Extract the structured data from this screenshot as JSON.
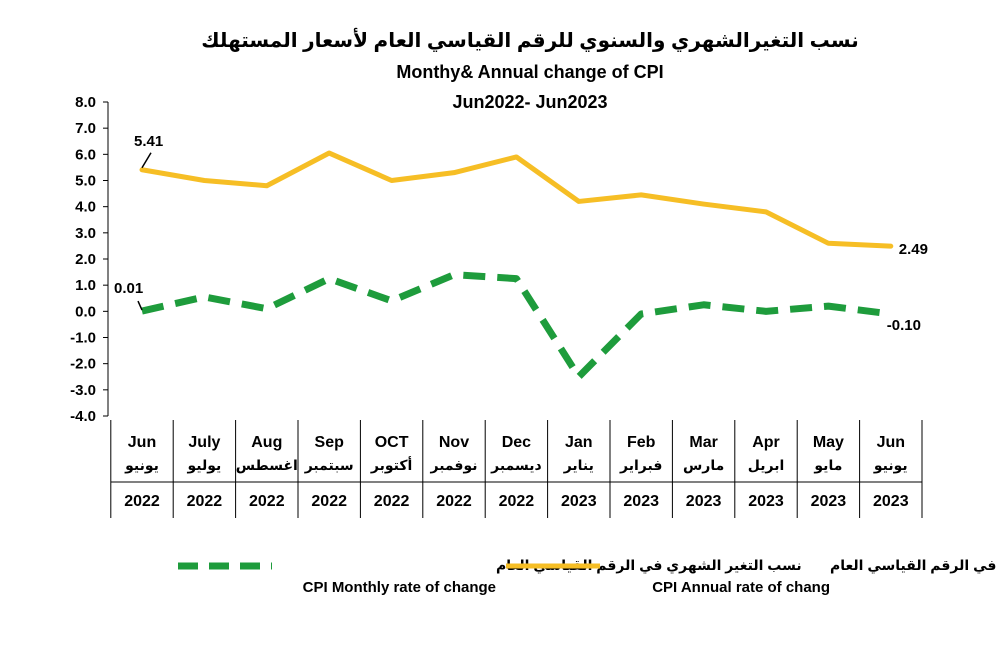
{
  "chart_data": {
    "type": "line",
    "title_ar": "نسب التغيرالشهري والسنوي للرقم القياسي العام لأسعار المستهلك",
    "title_en": "Monthy& Annual change of CPI",
    "subtitle": "Jun2022- Jun2023",
    "ylim": [
      -4.0,
      8.0
    ],
    "yticks": [
      "8.0",
      "7.0",
      "6.0",
      "5.0",
      "4.0",
      "3.0",
      "2.0",
      "1.0",
      "0.0",
      "-1.0",
      "-2.0",
      "-3.0",
      "-4.0"
    ],
    "categories": [
      {
        "en": "Jun",
        "ar": "يونيو",
        "year": "2022"
      },
      {
        "en": "July",
        "ar": "يوليو",
        "year": "2022"
      },
      {
        "en": "Aug",
        "ar": "اغسطس",
        "year": "2022"
      },
      {
        "en": "Sep",
        "ar": "سبتمبر",
        "year": "2022"
      },
      {
        "en": "OCT",
        "ar": "أكتوبر",
        "year": "2022"
      },
      {
        "en": "Nov",
        "ar": "نوفمبر",
        "year": "2022"
      },
      {
        "en": "Dec",
        "ar": "ديسمبر",
        "year": "2022"
      },
      {
        "en": "Jan",
        "ar": "يناير",
        "year": "2023"
      },
      {
        "en": "Feb",
        "ar": "فبراير",
        "year": "2023"
      },
      {
        "en": "Mar",
        "ar": "مارس",
        "year": "2023"
      },
      {
        "en": "Apr",
        "ar": "ابريل",
        "year": "2023"
      },
      {
        "en": "May",
        "ar": "مايو",
        "year": "2023"
      },
      {
        "en": "Jun",
        "ar": "يونيو",
        "year": "2023"
      }
    ],
    "series": [
      {
        "name": "annual",
        "name_ar": "نسب التغير السنوي في الرقم القياسي العام",
        "name_en": "CPI Annual rate of chang",
        "color": "#F6BE25",
        "style": "solid",
        "values": [
          5.41,
          5.0,
          4.8,
          6.05,
          5.0,
          5.3,
          5.9,
          4.2,
          4.45,
          4.1,
          3.8,
          2.6,
          2.49
        ]
      },
      {
        "name": "monthly",
        "name_ar": "نسب التغير الشهري في الرقم القياسي العام",
        "name_en": "CPI Monthly rate of change",
        "color": "#1E9C3C",
        "style": "dashed",
        "values": [
          0.01,
          0.55,
          0.1,
          1.25,
          0.4,
          1.4,
          1.25,
          -2.5,
          -0.1,
          0.25,
          0.0,
          0.2,
          -0.1
        ]
      }
    ],
    "annotations": {
      "annual_first": "5.41",
      "annual_last": "2.49",
      "monthly_first": "0.01",
      "monthly_last": "-0.10"
    }
  }
}
